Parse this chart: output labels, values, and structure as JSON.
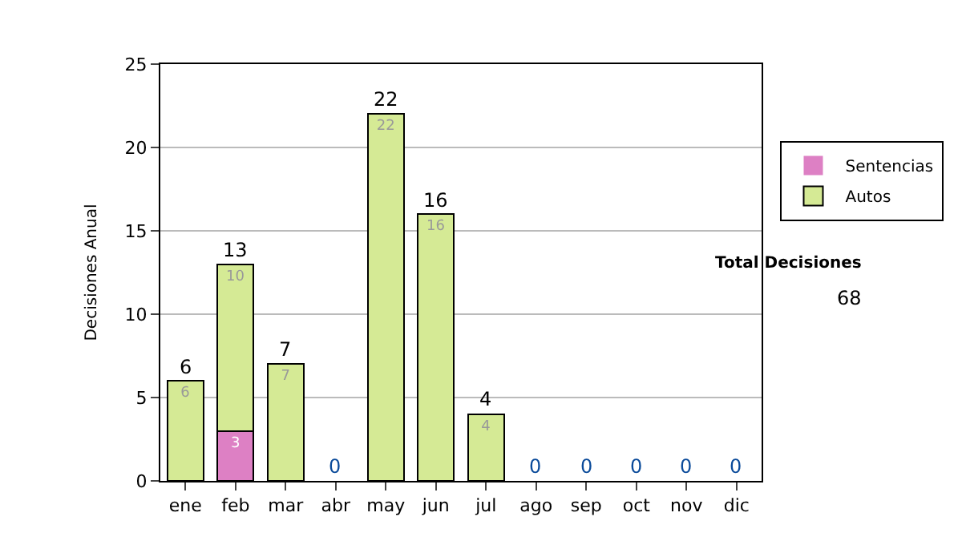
{
  "chart_data": {
    "type": "bar",
    "stacked": true,
    "ylabel": "Decisiones Anual",
    "categories": [
      "ene",
      "feb",
      "mar",
      "abr",
      "may",
      "jun",
      "jul",
      "ago",
      "sep",
      "oct",
      "nov",
      "dic"
    ],
    "series": [
      {
        "name": "Sentencias",
        "color": "#dd80c4",
        "values": [
          0,
          3,
          0,
          0,
          0,
          0,
          0,
          0,
          0,
          0,
          0,
          0
        ],
        "value_labels": [
          null,
          "3",
          null,
          null,
          null,
          null,
          null,
          null,
          null,
          null,
          null,
          null
        ]
      },
      {
        "name": "Autos",
        "color": "#d5ea95",
        "values": [
          6,
          10,
          7,
          0,
          22,
          16,
          4,
          0,
          0,
          0,
          0,
          0
        ],
        "value_labels": [
          "6",
          "10",
          "7",
          null,
          "22",
          "16",
          "4",
          null,
          null,
          null,
          null,
          null
        ]
      }
    ],
    "totals": [
      "6",
      "13",
      "7",
      "0",
      "22",
      "16",
      "4",
      "0",
      "0",
      "0",
      "0",
      "0"
    ],
    "ylim": [
      0,
      25
    ],
    "yticks": [
      0,
      5,
      10,
      15,
      20,
      25
    ],
    "grid": "y",
    "legend": "right",
    "annotations": [
      "Total Decisiones",
      "68"
    ]
  }
}
